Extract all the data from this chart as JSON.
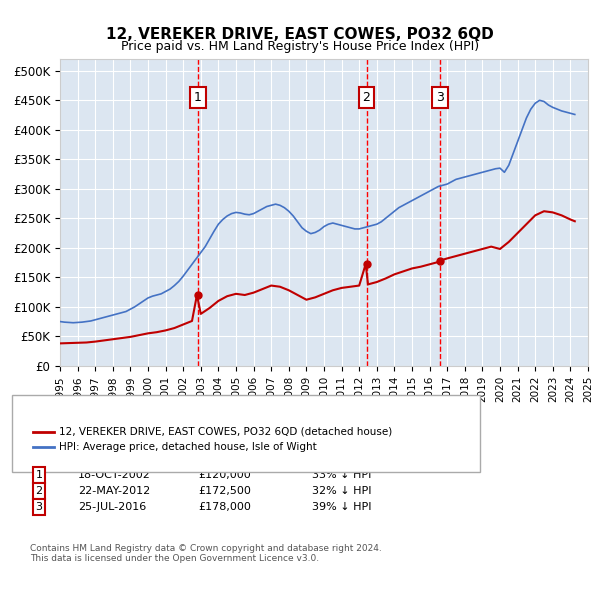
{
  "title": "12, VEREKER DRIVE, EAST COWES, PO32 6QD",
  "subtitle": "Price paid vs. HM Land Registry's House Price Index (HPI)",
  "ylabel": "",
  "background_color": "#dce6f1",
  "plot_bg_color": "#dce6f1",
  "ylim": [
    0,
    520000
  ],
  "yticks": [
    0,
    50000,
    100000,
    150000,
    200000,
    250000,
    300000,
    350000,
    400000,
    450000,
    500000
  ],
  "ytick_labels": [
    "£0",
    "£50K",
    "£100K",
    "£150K",
    "£200K",
    "£250K",
    "£300K",
    "£350K",
    "£400K",
    "£450K",
    "£500K"
  ],
  "sale_dates": [
    "2002-10-18",
    "2012-05-22",
    "2016-07-25"
  ],
  "sale_prices": [
    120000,
    172500,
    178000
  ],
  "sale_labels": [
    "1",
    "2",
    "3"
  ],
  "legend_line1": "12, VEREKER DRIVE, EAST COWES, PO32 6QD (detached house)",
  "legend_line2": "HPI: Average price, detached house, Isle of Wight",
  "table_rows": [
    [
      "1",
      "18-OCT-2002",
      "£120,000",
      "33% ↓ HPI"
    ],
    [
      "2",
      "22-MAY-2012",
      "£172,500",
      "32% ↓ HPI"
    ],
    [
      "3",
      "25-JUL-2016",
      "£178,000",
      "39% ↓ HPI"
    ]
  ],
  "footer": "Contains HM Land Registry data © Crown copyright and database right 2024.\nThis data is licensed under the Open Government Licence v3.0.",
  "hpi_color": "#4472c4",
  "sale_color": "#c00000",
  "vline_color": "#ff0000",
  "hpi_data": {
    "years": [
      1995.0,
      1995.25,
      1995.5,
      1995.75,
      1996.0,
      1996.25,
      1996.5,
      1996.75,
      1997.0,
      1997.25,
      1997.5,
      1997.75,
      1998.0,
      1998.25,
      1998.5,
      1998.75,
      1999.0,
      1999.25,
      1999.5,
      1999.75,
      2000.0,
      2000.25,
      2000.5,
      2000.75,
      2001.0,
      2001.25,
      2001.5,
      2001.75,
      2002.0,
      2002.25,
      2002.5,
      2002.75,
      2003.0,
      2003.25,
      2003.5,
      2003.75,
      2004.0,
      2004.25,
      2004.5,
      2004.75,
      2005.0,
      2005.25,
      2005.5,
      2005.75,
      2006.0,
      2006.25,
      2006.5,
      2006.75,
      2007.0,
      2007.25,
      2007.5,
      2007.75,
      2008.0,
      2008.25,
      2008.5,
      2008.75,
      2009.0,
      2009.25,
      2009.5,
      2009.75,
      2010.0,
      2010.25,
      2010.5,
      2010.75,
      2011.0,
      2011.25,
      2011.5,
      2011.75,
      2012.0,
      2012.25,
      2012.5,
      2012.75,
      2013.0,
      2013.25,
      2013.5,
      2013.75,
      2014.0,
      2014.25,
      2014.5,
      2014.75,
      2015.0,
      2015.25,
      2015.5,
      2015.75,
      2016.0,
      2016.25,
      2016.5,
      2016.75,
      2017.0,
      2017.25,
      2017.5,
      2017.75,
      2018.0,
      2018.25,
      2018.5,
      2018.75,
      2019.0,
      2019.25,
      2019.5,
      2019.75,
      2020.0,
      2020.25,
      2020.5,
      2020.75,
      2021.0,
      2021.25,
      2021.5,
      2021.75,
      2022.0,
      2022.25,
      2022.5,
      2022.75,
      2023.0,
      2023.25,
      2023.5,
      2023.75,
      2024.0,
      2024.25
    ],
    "values": [
      75000,
      74000,
      73500,
      73000,
      73500,
      74000,
      75000,
      76000,
      78000,
      80000,
      82000,
      84000,
      86000,
      88000,
      90000,
      92000,
      96000,
      100000,
      105000,
      110000,
      115000,
      118000,
      120000,
      122000,
      126000,
      130000,
      136000,
      143000,
      152000,
      162000,
      172000,
      182000,
      192000,
      202000,
      215000,
      228000,
      240000,
      248000,
      254000,
      258000,
      260000,
      259000,
      257000,
      256000,
      258000,
      262000,
      266000,
      270000,
      272000,
      274000,
      272000,
      268000,
      262000,
      254000,
      244000,
      234000,
      228000,
      224000,
      226000,
      230000,
      236000,
      240000,
      242000,
      240000,
      238000,
      236000,
      234000,
      232000,
      232000,
      234000,
      236000,
      238000,
      240000,
      244000,
      250000,
      256000,
      262000,
      268000,
      272000,
      276000,
      280000,
      284000,
      288000,
      292000,
      296000,
      300000,
      304000,
      306000,
      308000,
      312000,
      316000,
      318000,
      320000,
      322000,
      324000,
      326000,
      328000,
      330000,
      332000,
      334000,
      335000,
      328000,
      340000,
      360000,
      380000,
      400000,
      420000,
      435000,
      445000,
      450000,
      448000,
      442000,
      438000,
      435000,
      432000,
      430000,
      428000,
      426000
    ]
  },
  "property_data": {
    "years": [
      1995.0,
      1995.5,
      1996.0,
      1996.5,
      1997.0,
      1997.5,
      1998.0,
      1998.5,
      1999.0,
      1999.5,
      2000.0,
      2000.5,
      2001.0,
      2001.5,
      2002.0,
      2002.5,
      2002.78,
      2003.0,
      2003.5,
      2004.0,
      2004.5,
      2005.0,
      2005.5,
      2006.0,
      2006.5,
      2007.0,
      2007.5,
      2008.0,
      2008.5,
      2009.0,
      2009.5,
      2010.0,
      2010.5,
      2011.0,
      2011.5,
      2012.0,
      2012.37,
      2012.5,
      2013.0,
      2013.5,
      2014.0,
      2014.5,
      2015.0,
      2015.5,
      2016.0,
      2016.5,
      2016.55,
      2017.0,
      2017.5,
      2018.0,
      2018.5,
      2019.0,
      2019.5,
      2020.0,
      2020.5,
      2021.0,
      2021.5,
      2022.0,
      2022.5,
      2023.0,
      2023.5,
      2024.0,
      2024.25
    ],
    "values": [
      38000,
      38500,
      39000,
      39500,
      41000,
      43000,
      45000,
      47000,
      49000,
      52000,
      55000,
      57000,
      60000,
      64000,
      70000,
      76000,
      120000,
      88000,
      98000,
      110000,
      118000,
      122000,
      120000,
      124000,
      130000,
      136000,
      134000,
      128000,
      120000,
      112000,
      116000,
      122000,
      128000,
      132000,
      134000,
      136000,
      172500,
      138000,
      142000,
      148000,
      155000,
      160000,
      165000,
      168000,
      172000,
      176000,
      178000,
      182000,
      186000,
      190000,
      194000,
      198000,
      202000,
      198000,
      210000,
      225000,
      240000,
      255000,
      262000,
      260000,
      255000,
      248000,
      245000
    ]
  },
  "x_start": 1995,
  "x_end": 2025,
  "xtick_years": [
    1995,
    1996,
    1997,
    1998,
    1999,
    2000,
    2001,
    2002,
    2003,
    2004,
    2005,
    2006,
    2007,
    2008,
    2009,
    2010,
    2011,
    2012,
    2013,
    2014,
    2015,
    2016,
    2017,
    2018,
    2019,
    2020,
    2021,
    2022,
    2023,
    2024,
    2025
  ]
}
